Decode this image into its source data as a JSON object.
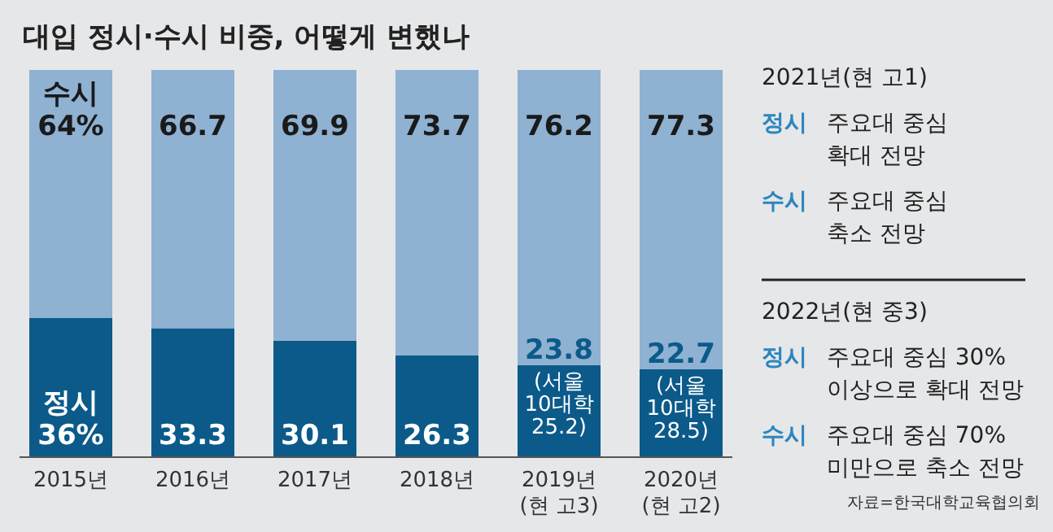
{
  "chart_data": {
    "type": "bar",
    "stacked": true,
    "title": "대입 정시·수시 비중, 어떻게 변했나",
    "categories": [
      "2015년",
      "2016년",
      "2017년",
      "2018년",
      "2019년\n(현 고3)",
      "2020년\n(현 고2)"
    ],
    "series": [
      {
        "name": "정시",
        "color": "#0b5a8a",
        "values": [
          36,
          33.3,
          30.1,
          26.3,
          23.8,
          22.7
        ],
        "value_labels": [
          "36%",
          "33.3",
          "30.1",
          "26.3",
          "23.8\n(서울\n10대학\n25.2)",
          "22.7\n(서울\n10대학\n28.5)"
        ]
      },
      {
        "name": "수시",
        "color": "#8fb1d2",
        "values": [
          64,
          66.7,
          69.9,
          73.7,
          76.2,
          77.3
        ],
        "value_labels": [
          "64%",
          "66.7",
          "69.9",
          "73.7",
          "76.2",
          "77.3"
        ]
      }
    ],
    "annotations": [
      "2021년(현 고1)",
      "정시 주요대 중심\n확대 전망",
      "수시 주요대 중심\n축소 전망",
      "2022년(현 중3)",
      "정시 주요대 중심 30%\n이상으로 확대 전망",
      "수시 주요대 중심 70%\n미만으로 축소 전망",
      "자료=한국대학교육협의회"
    ]
  }
}
